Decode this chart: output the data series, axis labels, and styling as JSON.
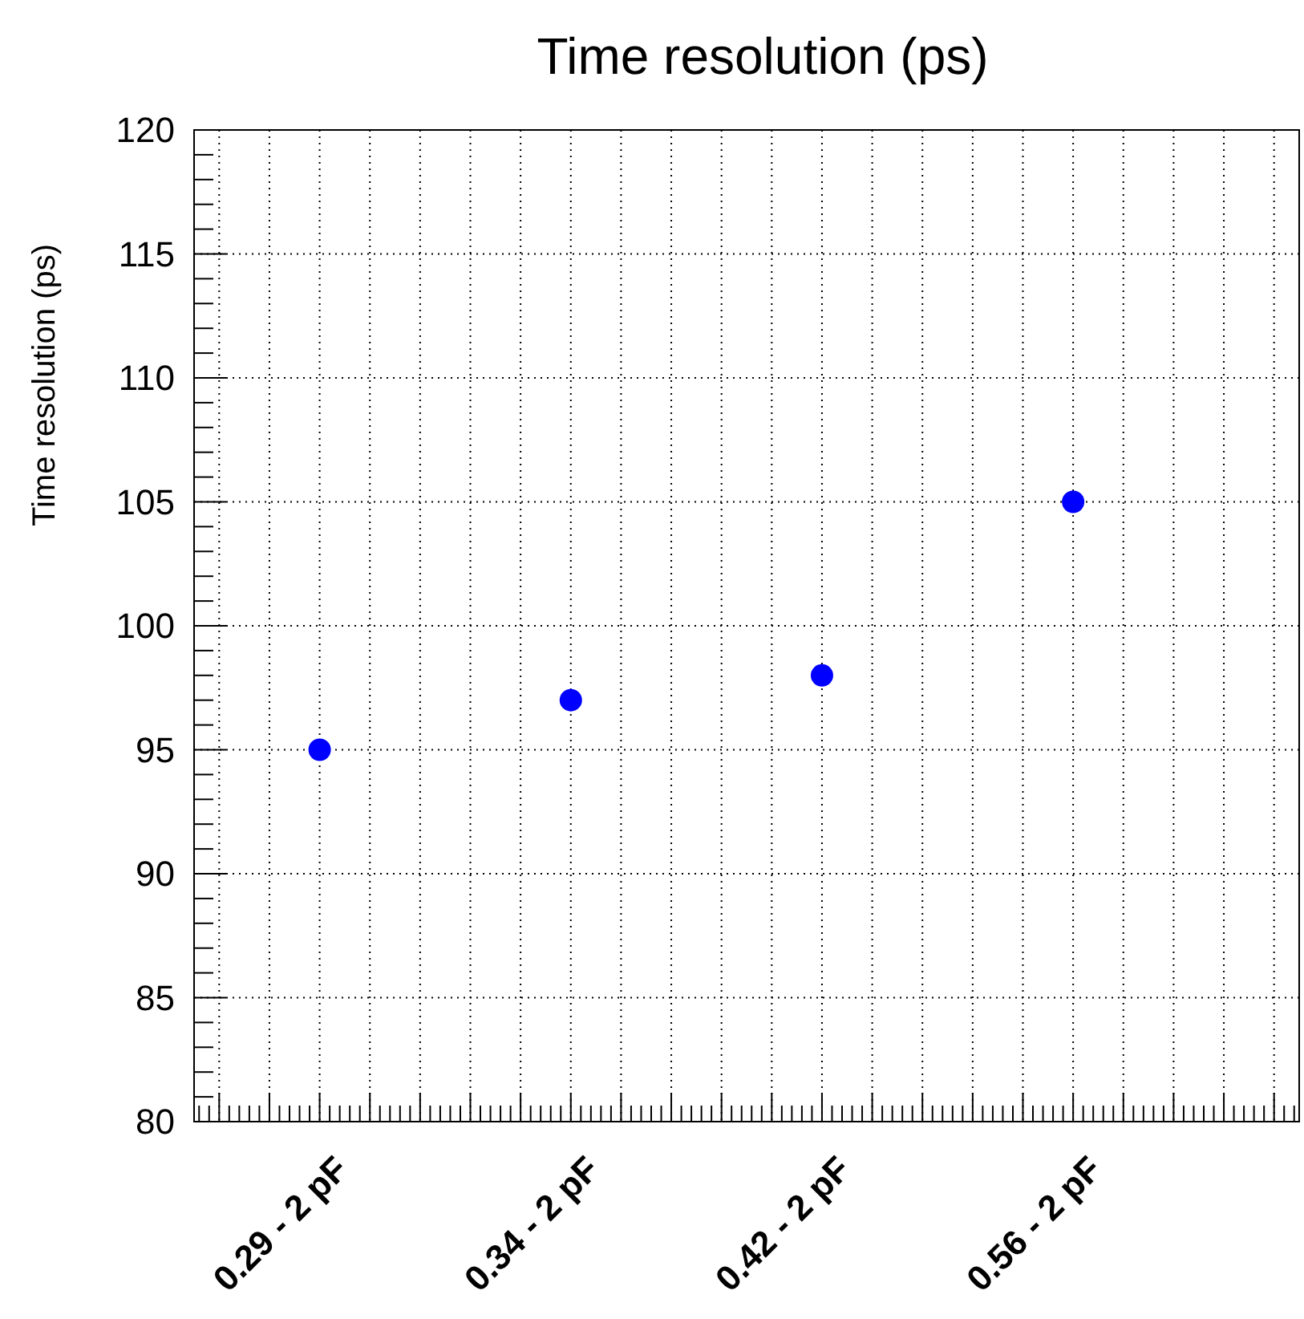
{
  "chart_data": {
    "type": "scatter",
    "title": "Time resolution (ps)",
    "ylabel": "Time resolution (ps)",
    "categories": [
      "0.29 - 2  pF",
      "0.34 - 2 pF",
      "0.42 - 2 pF",
      "0.56 - 2 pF"
    ],
    "series": [
      {
        "color": "#0000ff",
        "values": [
          95,
          97,
          98,
          105
        ]
      }
    ],
    "ylim": [
      80,
      120
    ],
    "yticks": [
      80,
      85,
      90,
      95,
      100,
      105,
      110,
      115,
      120
    ],
    "grid": true,
    "marker": "circle"
  }
}
